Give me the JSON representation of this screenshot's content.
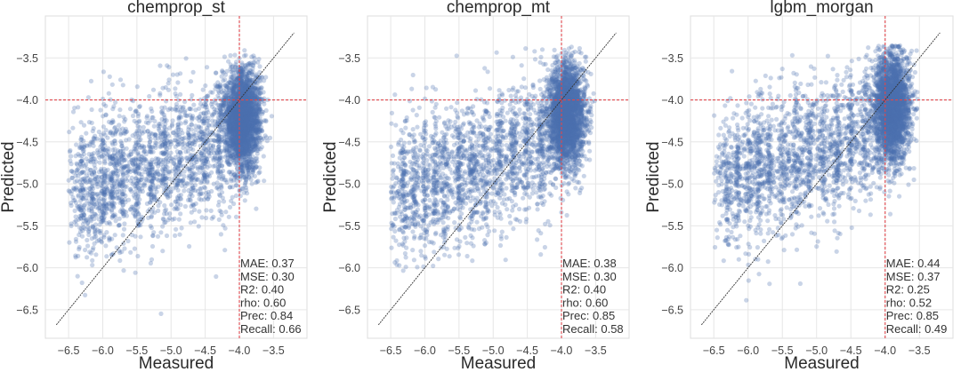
{
  "chart_data": [
    {
      "type": "scatter",
      "title": "chemprop_st",
      "xlabel": "Measured",
      "ylabel": "Predicted",
      "xlim": [
        -6.84,
        -3.01
      ],
      "ylim": [
        -6.84,
        -3.0
      ],
      "xticks": [
        -6.5,
        -6.0,
        -5.5,
        -5.0,
        -4.5,
        -4.0,
        -3.5
      ],
      "yticks": [
        -6.5,
        -6.0,
        -5.5,
        -5.0,
        -4.5,
        -4.0,
        -3.5
      ],
      "xtick_labels": [
        "−6.5",
        "−6.0",
        "−5.5",
        "−5.0",
        "−4.5",
        "−4.0",
        "−3.5"
      ],
      "ytick_labels": [
        "−6.5",
        "−6.0",
        "−5.5",
        "−5.0",
        "−4.5",
        "−4.0",
        "−3.5"
      ],
      "grid": true,
      "threshold": -4.0,
      "identity_line": [
        -6.68,
        -3.2
      ],
      "stats": [
        "MAE: 0.37",
        "MSE: 0.30",
        "R2: 0.40",
        "rho: 0.60",
        "Prec: 0.84",
        "Recall: 0.66"
      ],
      "cluster": {
        "x_center": -3.95,
        "y_center": -4.1,
        "spread": 0.45
      }
    },
    {
      "type": "scatter",
      "title": "chemprop_mt",
      "xlabel": "Measured",
      "ylabel": "Predicted",
      "xlim": [
        -6.84,
        -3.01
      ],
      "ylim": [
        -6.84,
        -3.0
      ],
      "xticks": [
        -6.5,
        -6.0,
        -5.5,
        -5.0,
        -4.5,
        -4.0,
        -3.5
      ],
      "yticks": [
        -6.5,
        -6.0,
        -5.5,
        -5.0,
        -4.5,
        -4.0,
        -3.5
      ],
      "xtick_labels": [
        "−6.5",
        "−6.0",
        "−5.5",
        "−5.0",
        "−4.5",
        "−4.0",
        "−3.5"
      ],
      "ytick_labels": [
        "−6.5",
        "−6.0",
        "−5.5",
        "−5.0",
        "−4.5",
        "−4.0",
        "−3.5"
      ],
      "grid": true,
      "threshold": -4.0,
      "identity_line": [
        -6.68,
        -3.2
      ],
      "stats": [
        "MAE: 0.38",
        "MSE: 0.30",
        "R2: 0.40",
        "rho: 0.60",
        "Prec: 0.85",
        "Recall: 0.58"
      ],
      "cluster": {
        "x_center": -3.92,
        "y_center": -4.05,
        "spread": 0.45
      }
    },
    {
      "type": "scatter",
      "title": "lgbm_morgan",
      "xlabel": "Measured",
      "ylabel": "Predicted",
      "xlim": [
        -6.84,
        -3.01
      ],
      "ylim": [
        -6.84,
        -3.0
      ],
      "xticks": [
        -6.5,
        -6.0,
        -5.5,
        -5.0,
        -4.5,
        -4.0,
        -3.5
      ],
      "yticks": [
        -6.5,
        -6.0,
        -5.5,
        -5.0,
        -4.5,
        -4.0,
        -3.5
      ],
      "xtick_labels": [
        "−6.5",
        "−6.0",
        "−5.5",
        "−5.0",
        "−4.5",
        "−4.0",
        "−3.5"
      ],
      "ytick_labels": [
        "−6.5",
        "−6.0",
        "−5.5",
        "−5.0",
        "−4.5",
        "−4.0",
        "−3.5"
      ],
      "grid": true,
      "threshold": -4.0,
      "identity_line": [
        -6.68,
        -3.2
      ],
      "stats": [
        "MAE: 0.44",
        "MSE: 0.37",
        "R2: 0.25",
        "rho: 0.52",
        "Prec: 0.85",
        "Recall: 0.49"
      ],
      "cluster": {
        "x_center": -3.9,
        "y_center": -3.95,
        "spread": 0.5
      }
    }
  ],
  "colors": {
    "points": "#4c72b0",
    "threshold": "#e0474c",
    "identity": "#333333",
    "grid": "#e6e6e6"
  }
}
